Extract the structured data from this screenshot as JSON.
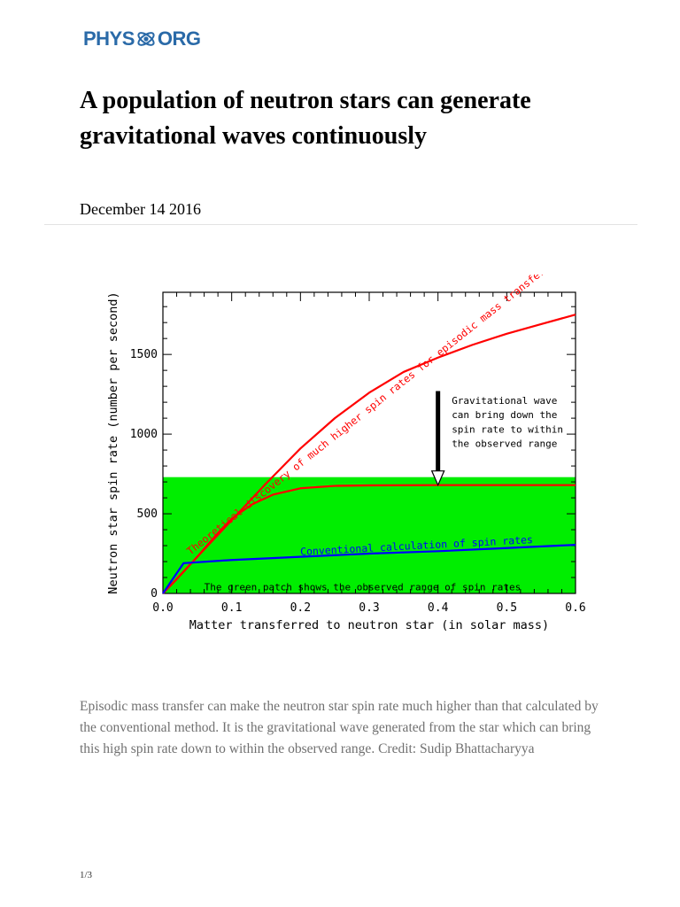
{
  "header": {
    "logo_left": "PHYS",
    "logo_right": "ORG"
  },
  "article": {
    "title": "A population of neutron stars can generate gravitational waves continuously",
    "date": "December 14 2016",
    "caption": "Episodic mass transfer can make the neutron star spin rate much higher than that calculated by the conventional method. It is the gravitational wave generated from the star which can bring this high spin rate down to within the observed range. Credit: Sudip Bhattacharyya"
  },
  "footer": {
    "page": "1/3"
  },
  "chart_data": {
    "type": "line",
    "title": "",
    "xlabel": "Matter transferred to neutron star (in solar mass)",
    "ylabel": "Neutron star spin rate (number per second)",
    "xlim": [
      0.0,
      0.6
    ],
    "ylim": [
      0,
      1890
    ],
    "x_ticks": [
      "0.0",
      "0.1",
      "0.2",
      "0.3",
      "0.4",
      "0.5",
      "0.6"
    ],
    "x_tick_values": [
      0.0,
      0.1,
      0.2,
      0.3,
      0.4,
      0.5,
      0.6
    ],
    "y_ticks": [
      "0",
      "500",
      "1000",
      "1500"
    ],
    "y_tick_values": [
      0,
      500,
      1000,
      1500
    ],
    "observed_range": [
      0,
      730
    ],
    "colors": {
      "episodic": "#ff0000",
      "conventional": "#0000ff",
      "observed_patch": "#00ee00",
      "arrow": "#000000"
    },
    "series": [
      {
        "key": "episodic",
        "color": "#ff0000",
        "x": [
          0.0,
          0.02,
          0.05,
          0.1,
          0.15,
          0.2,
          0.25,
          0.3,
          0.35,
          0.4,
          0.45,
          0.5,
          0.55,
          0.6
        ],
        "values": [
          0,
          90,
          230,
          460,
          690,
          910,
          1100,
          1260,
          1390,
          1480,
          1560,
          1630,
          1690,
          1750
        ]
      },
      {
        "key": "episodic-with-gw",
        "color": "#ff0000",
        "x": [
          0.0,
          0.02,
          0.05,
          0.08,
          0.1,
          0.13,
          0.16,
          0.2,
          0.25,
          0.3,
          0.4,
          0.5,
          0.6
        ],
        "values": [
          0,
          90,
          230,
          380,
          470,
          560,
          620,
          660,
          675,
          678,
          680,
          680,
          680
        ]
      },
      {
        "key": "conventional",
        "color": "#0000ff",
        "x": [
          0.0,
          0.03,
          0.1,
          0.2,
          0.3,
          0.4,
          0.5,
          0.6
        ],
        "values": [
          0,
          190,
          210,
          230,
          250,
          265,
          285,
          305
        ]
      }
    ],
    "annotations": {
      "episodic_label": "Theoretical discovery of much higher spin rates for episodic mass transfer",
      "conventional_label": "Conventional calculation of spin rates",
      "patch_label": "The green patch shows the observed range of spin rates",
      "gw_line1": "Gravitational wave",
      "gw_line2": "can bring down the",
      "gw_line3": "spin rate to within",
      "gw_line4": "the observed range"
    },
    "arrow": {
      "x": 0.4,
      "from": 1270,
      "to": 680
    }
  }
}
